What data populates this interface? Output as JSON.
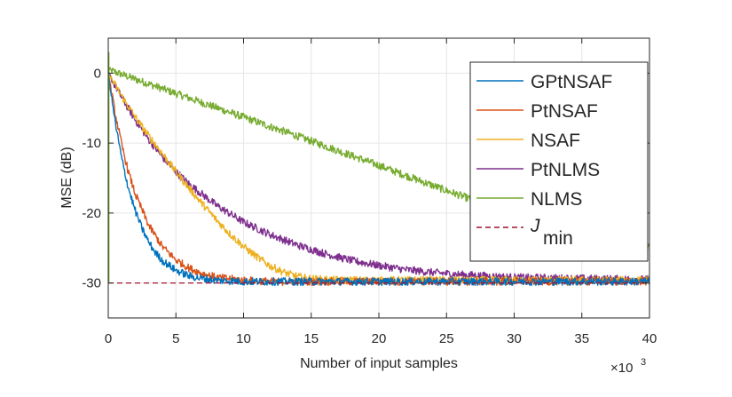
{
  "chart_data": {
    "type": "line",
    "title": "",
    "xlabel": "Number of input samples",
    "ylabel": "MSE (dB)",
    "x_multiplier": "×10",
    "x_multiplier_exp": "3",
    "xlim": [
      0,
      40
    ],
    "ylim": [
      -35,
      5
    ],
    "xticks": [
      0,
      5,
      10,
      15,
      20,
      25,
      30,
      35,
      40
    ],
    "yticks": [
      0,
      -10,
      -20,
      -30
    ],
    "grid": true,
    "legend_position": "top-right",
    "series": [
      {
        "name": "GPtNSAF",
        "color": "#0072BD",
        "x": [
          0,
          0.5,
          1,
          1.5,
          2,
          2.5,
          3,
          3.5,
          4,
          5,
          6,
          7,
          8,
          9,
          10,
          12,
          15,
          20,
          25,
          30,
          35,
          40
        ],
        "y": [
          0,
          -6.9,
          -12.3,
          -16.5,
          -19.7,
          -22.2,
          -24.2,
          -25.7,
          -26.8,
          -28.2,
          -29.0,
          -29.4,
          -29.6,
          -29.7,
          -29.8,
          -29.8,
          -29.8,
          -29.8,
          -29.8,
          -29.8,
          -29.8,
          -29.8
        ]
      },
      {
        "name": "PtNSAF",
        "color": "#D95319",
        "x": [
          0,
          0.5,
          1,
          1.5,
          2,
          3,
          4,
          5,
          6,
          7,
          8,
          10,
          12,
          15,
          20,
          25,
          30,
          35,
          40
        ],
        "y": [
          0,
          -5.6,
          -10.3,
          -14.2,
          -17.3,
          -21.8,
          -24.8,
          -26.7,
          -27.9,
          -28.7,
          -29.2,
          -29.6,
          -29.8,
          -29.8,
          -29.8,
          -29.8,
          -29.8,
          -29.8,
          -29.8
        ]
      },
      {
        "name": "NSAF",
        "color": "#EDB120",
        "x": [
          0,
          1,
          2,
          3,
          4,
          5,
          6,
          7,
          8,
          9,
          10,
          11,
          12,
          13,
          14,
          15,
          17,
          20,
          25,
          30,
          35,
          40
        ],
        "y": [
          0,
          -3.3,
          -6.3,
          -9.0,
          -11.5,
          -14.1,
          -16.5,
          -18.8,
          -21.0,
          -23.0,
          -24.8,
          -26.3,
          -27.6,
          -28.5,
          -29.1,
          -29.4,
          -29.6,
          -29.6,
          -29.6,
          -29.6,
          -29.6,
          -29.6
        ]
      },
      {
        "name": "PtNLMS",
        "color": "#7E2F8E",
        "x": [
          0,
          1,
          2,
          3,
          4,
          5,
          6,
          8,
          10,
          12,
          14,
          16,
          18,
          20,
          22,
          24,
          26,
          28,
          30,
          33,
          36,
          40
        ],
        "y": [
          0,
          -3.5,
          -6.7,
          -9.5,
          -12.0,
          -14.1,
          -15.9,
          -18.9,
          -21.3,
          -23.1,
          -24.6,
          -25.8,
          -26.8,
          -27.5,
          -28.1,
          -28.5,
          -28.8,
          -29.0,
          -29.2,
          -29.3,
          -29.4,
          -29.5
        ]
      },
      {
        "name": "NLMS",
        "color": "#77AC30",
        "x": [
          0,
          5,
          10,
          15,
          20,
          25,
          30,
          35,
          40
        ],
        "y": [
          0.5,
          -2.9,
          -6.3,
          -9.7,
          -13.2,
          -16.8,
          -20.2,
          -22.8,
          -25.0
        ]
      },
      {
        "name": "J_min",
        "label_main": "J",
        "label_sub": "min",
        "color": "#A2142F",
        "dashed": true,
        "x": [
          0,
          40
        ],
        "y": [
          -30,
          -30
        ]
      }
    ]
  }
}
